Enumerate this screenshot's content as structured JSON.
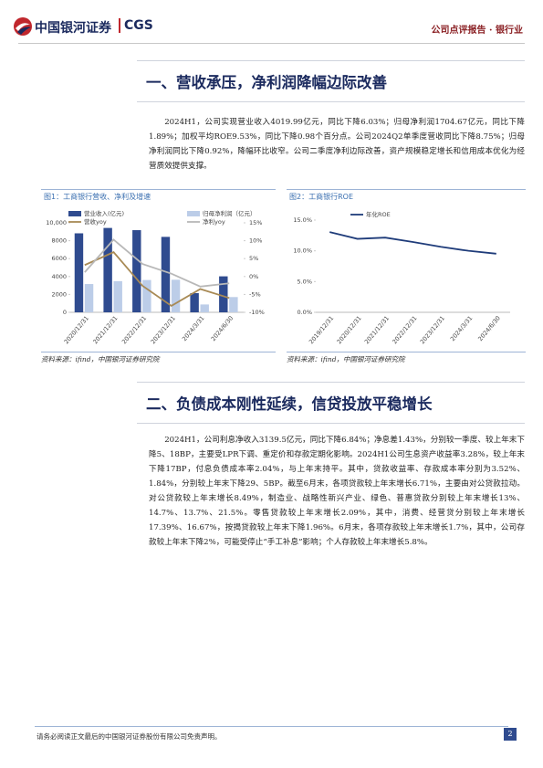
{
  "header": {
    "brand": "中国银河证券",
    "brand_en": "CGS",
    "report_type": "公司点评报告 · 银行业"
  },
  "sections": [
    {
      "title": "一、营收承压，净利润降幅边际改善",
      "paragraphs": [
        "2024H1，公司实现营业收入4019.99亿元，同比下降6.03%；归母净利润1704.67亿元，同比下降1.89%；加权平均ROE9.53%，同比下降0.98个百分点。公司2024Q2单季度营收同比下降8.75%；归母净利润同比下降0.92%，降幅环比收窄。公司二季度净利边际改善，资产规模稳定增长和信用成本优化为经营质效提供支撑。"
      ]
    },
    {
      "title": "二、负债成本刚性延续，信贷投放平稳增长",
      "paragraphs": [
        "2024H1，公司利息净收入3139.5亿元，同比下降6.84%；净息差1.43%，分别较一季度、较上年末下降5、18BP，主要受LPR下调、重定价和存款定期化影响。2024H1公司生息资产收益率3.28%，较上年末下降17BP，付息负债成本率2.04%，与上年末持平。其中，贷款收益率、存款成本率分别为3.52%、1.84%，分别较上年末下降29、5BP。截至6月末，各项贷款较上年末增长6.71%，主要由对公贷款拉动。对公贷款较上年末增长8.49%，制造业、战略性新兴产业、绿色、普惠贷款分别较上年末增长13%、14.7%、13.7%、21.5%。零售贷款较上年末增长2.09%，其中，消费、经营贷分别较上年末增长17.39%、16.67%，按揭贷款较上年末下降1.96%。6月末，各项存款较上年末增长1.7%，其中，公司存款较上年末下降2%，可能受停止“手工补息”影响；个人存款较上年末增长5.8%。"
      ]
    }
  ],
  "figures": [
    {
      "caption": "图1：工商银行营收、净利及增速",
      "source": "资料来源：ifind，中国银河证券研究院",
      "chart_data": {
        "type": "combo",
        "categories": [
          "2020/12/31",
          "2021/12/31",
          "2022/12/31",
          "2023/12/31",
          "2024/3/31",
          "2024/6/30"
        ],
        "series": [
          {
            "name": "营业收入(亿元)",
            "type": "bar",
            "color": "#2f4b8f",
            "values": [
              8827,
              9428,
              9180,
              8430,
              2141,
              4020
            ]
          },
          {
            "name": "归母净利润（亿元）",
            "type": "bar",
            "color": "#bccde8",
            "values": [
              3159,
              3483,
              3610,
              3640,
              878,
              1705
            ]
          },
          {
            "name": "营收yoy",
            "type": "line",
            "axis": "y2",
            "color": "#a88a55",
            "values": [
              3.2,
              6.8,
              -2.6,
              -8.2,
              -3.5,
              -6.0
            ]
          },
          {
            "name": "净利yoy",
            "type": "line",
            "axis": "y2",
            "color": "#b8b8b8",
            "values": [
              1.2,
              10.3,
              3.5,
              0.8,
              -2.8,
              -1.9
            ]
          }
        ],
        "ylim": [
          0,
          10000
        ],
        "yticks": [
          0,
          2000,
          4000,
          6000,
          8000,
          {
            "value": 10000,
            "label": "10,000"
          }
        ],
        "y2lim": [
          -10,
          15
        ],
        "y2ticks": [
          {
            "value": -10,
            "label": "-10%"
          },
          {
            "value": -5,
            "label": "-5%"
          },
          {
            "value": 0,
            "label": "0%"
          },
          {
            "value": 5,
            "label": "5%"
          },
          {
            "value": 10,
            "label": "10%"
          },
          {
            "value": 15,
            "label": "15%"
          }
        ]
      }
    },
    {
      "caption": "图2：工商银行ROE",
      "source": "资料来源：ifind，中国银河证券研究院",
      "chart_data": {
        "type": "line",
        "categories": [
          "2019/12/31",
          "2020/12/31",
          "2021/12/31",
          "2022/12/31",
          "2023/12/31",
          "2024/3/31",
          "2024/6/30"
        ],
        "series": [
          {
            "name": "年化ROE",
            "color": "#1f3c7a",
            "values": [
              13.05,
              11.95,
              12.15,
              11.43,
              10.66,
              10.0,
              9.53
            ]
          }
        ],
        "ylim": [
          0,
          15
        ],
        "yticks": [
          {
            "value": 0,
            "label": "0.0%"
          },
          {
            "value": 5,
            "label": "5.0%"
          },
          {
            "value": 10,
            "label": "10.0%"
          },
          {
            "value": 15,
            "label": "15.0%"
          }
        ]
      }
    }
  ],
  "footer": {
    "disclaimer": "请务必阅读正文最后的中国银河证券股份有限公司免责声明。",
    "page": 2
  }
}
